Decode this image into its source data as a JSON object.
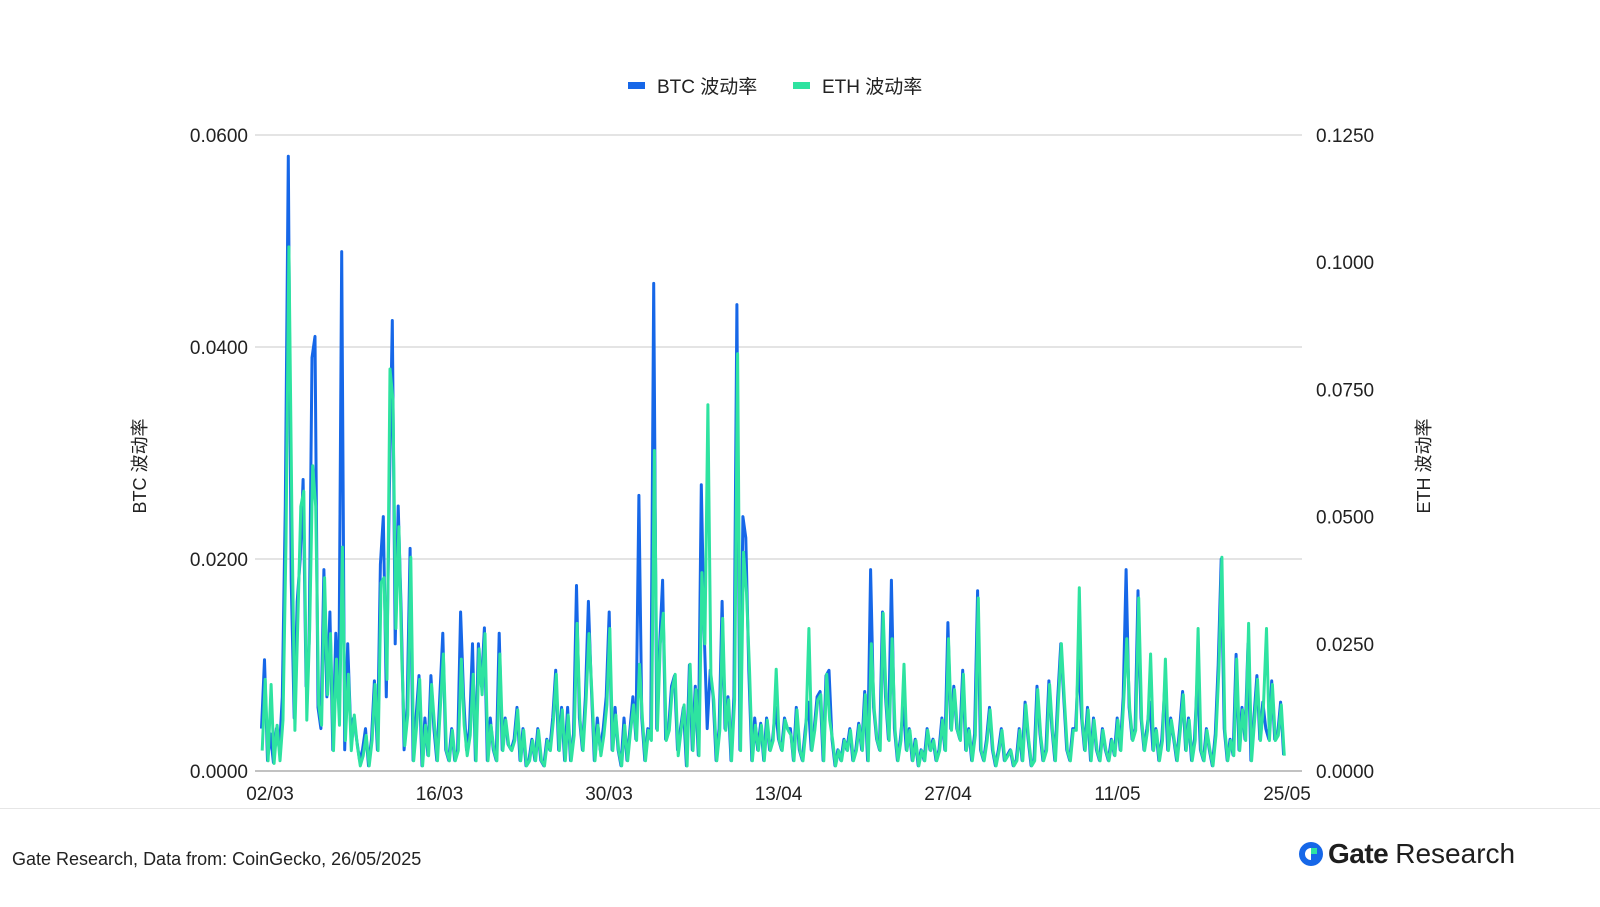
{
  "chart_data": {
    "type": "line",
    "legend_position": "top-center",
    "grid": true,
    "x_tick_labels": [
      "02/03",
      "16/03",
      "30/03",
      "13/04",
      "27/04",
      "11/05",
      "25/05"
    ],
    "y_left": {
      "label": "BTC 波动率",
      "ylim": [
        0,
        0.06
      ],
      "ticks": [
        "0.0000",
        "0.0200",
        "0.0400",
        "0.0600"
      ]
    },
    "y_right": {
      "label": "ETH 波动率",
      "ylim": [
        0,
        0.125
      ],
      "ticks": [
        "0.0000",
        "0.0250",
        "0.0500",
        "0.0750",
        "0.1000",
        "0.1250"
      ]
    },
    "series": [
      {
        "name": "BTC 波动率",
        "axis": "left",
        "color": "#1667e8",
        "x_start": 0,
        "x_step": 0.5,
        "values": [
          0.004,
          0.0105,
          0.001,
          0.0035,
          0.0008,
          0.004,
          0.002,
          0.007,
          0.025,
          0.058,
          0.018,
          0.005,
          0.016,
          0.02,
          0.0275,
          0.008,
          0.012,
          0.039,
          0.041,
          0.006,
          0.004,
          0.019,
          0.007,
          0.015,
          0.002,
          0.013,
          0.007,
          0.049,
          0.002,
          0.012,
          0.004,
          0.005,
          0.003,
          0.001,
          0.002,
          0.004,
          0.0005,
          0.003,
          0.0085,
          0.002,
          0.0195,
          0.024,
          0.007,
          0.026,
          0.0425,
          0.012,
          0.025,
          0.015,
          0.002,
          0.006,
          0.021,
          0.001,
          0.005,
          0.009,
          0.0005,
          0.005,
          0.0015,
          0.009,
          0.004,
          0.001,
          0.007,
          0.013,
          0.002,
          0.001,
          0.004,
          0.001,
          0.002,
          0.015,
          0.007,
          0.002,
          0.004,
          0.012,
          0.001,
          0.012,
          0.008,
          0.0135,
          0.001,
          0.005,
          0.002,
          0.001,
          0.013,
          0.002,
          0.005,
          0.0025,
          0.002,
          0.003,
          0.006,
          0.001,
          0.004,
          0.0005,
          0.001,
          0.003,
          0.001,
          0.004,
          0.001,
          0.0005,
          0.003,
          0.002,
          0.005,
          0.0095,
          0.002,
          0.006,
          0.001,
          0.006,
          0.001,
          0.0035,
          0.0175,
          0.005,
          0.002,
          0.007,
          0.016,
          0.008,
          0.001,
          0.005,
          0.002,
          0.004,
          0.007,
          0.015,
          0.002,
          0.006,
          0.002,
          0.0005,
          0.005,
          0.001,
          0.004,
          0.007,
          0.003,
          0.026,
          0.005,
          0.001,
          0.004,
          0.003,
          0.046,
          0.004,
          0.012,
          0.018,
          0.003,
          0.004,
          0.008,
          0.009,
          0.002,
          0.004,
          0.006,
          0.0005,
          0.01,
          0.002,
          0.008,
          0.0015,
          0.027,
          0.013,
          0.004,
          0.0095,
          0.007,
          0.001,
          0.004,
          0.016,
          0.004,
          0.007,
          0.001,
          0.007,
          0.044,
          0.002,
          0.024,
          0.022,
          0.0095,
          0.001,
          0.005,
          0.002,
          0.0045,
          0.001,
          0.005,
          0.002,
          0.003,
          0.006,
          0.003,
          0.002,
          0.005,
          0.004,
          0.004,
          0.001,
          0.006,
          0.002,
          0.001,
          0.004,
          0.0065,
          0.002,
          0.004,
          0.007,
          0.0075,
          0.001,
          0.009,
          0.0095,
          0.003,
          0.0005,
          0.002,
          0.001,
          0.003,
          0.002,
          0.004,
          0.001,
          0.002,
          0.0045,
          0.002,
          0.0075,
          0.001,
          0.019,
          0.006,
          0.003,
          0.002,
          0.015,
          0.007,
          0.003,
          0.018,
          0.004,
          0.001,
          0.003,
          0.006,
          0.002,
          0.004,
          0.001,
          0.003,
          0.0005,
          0.002,
          0.001,
          0.004,
          0.002,
          0.003,
          0.001,
          0.002,
          0.005,
          0.002,
          0.014,
          0.004,
          0.008,
          0.004,
          0.003,
          0.0095,
          0.002,
          0.004,
          0.001,
          0.0035,
          0.017,
          0.002,
          0.001,
          0.003,
          0.006,
          0.002,
          0.0005,
          0.002,
          0.004,
          0.001,
          0.0015,
          0.002,
          0.0005,
          0.001,
          0.004,
          0.001,
          0.0065,
          0.003,
          0.0005,
          0.001,
          0.008,
          0.0035,
          0.001,
          0.002,
          0.0085,
          0.004,
          0.001,
          0.007,
          0.012,
          0.007,
          0.002,
          0.001,
          0.004,
          0.004,
          0.0105,
          0.005,
          0.002,
          0.006,
          0.001,
          0.005,
          0.002,
          0.001,
          0.004,
          0.002,
          0.001,
          0.003,
          0.0015,
          0.005,
          0.002,
          0.007,
          0.019,
          0.006,
          0.003,
          0.004,
          0.017,
          0.005,
          0.002,
          0.004,
          0.0065,
          0.002,
          0.004,
          0.001,
          0.003,
          0.008,
          0.002,
          0.005,
          0.003,
          0.001,
          0.004,
          0.0075,
          0.002,
          0.005,
          0.001,
          0.003,
          0.009,
          0.002,
          0.001,
          0.004,
          0.002,
          0.0005,
          0.0035,
          0.01,
          0.02,
          0.004,
          0.001,
          0.003,
          0.0015,
          0.011,
          0.002,
          0.006,
          0.003,
          0.012,
          0.001,
          0.005,
          0.009,
          0.003,
          0.0065,
          0.004,
          0.003,
          0.0085,
          0.003,
          0.0035,
          0.0065,
          0.0015
        ]
      },
      {
        "name": "ETH 波动率",
        "axis": "right",
        "color": "#2ee3a0",
        "x_start": 0.25,
        "x_step": 0.5,
        "values": [
          0.004,
          0.018,
          0.002,
          0.017,
          0.0015,
          0.009,
          0.002,
          0.01,
          0.045,
          0.103,
          0.05,
          0.008,
          0.03,
          0.052,
          0.055,
          0.01,
          0.028,
          0.06,
          0.052,
          0.013,
          0.009,
          0.038,
          0.015,
          0.027,
          0.004,
          0.022,
          0.009,
          0.044,
          0.006,
          0.019,
          0.004,
          0.011,
          0.005,
          0.001,
          0.003,
          0.007,
          0.001,
          0.006,
          0.017,
          0.004,
          0.037,
          0.038,
          0.018,
          0.079,
          0.073,
          0.028,
          0.048,
          0.022,
          0.005,
          0.011,
          0.042,
          0.002,
          0.009,
          0.018,
          0.001,
          0.009,
          0.003,
          0.017,
          0.009,
          0.002,
          0.013,
          0.023,
          0.004,
          0.002,
          0.008,
          0.002,
          0.004,
          0.022,
          0.009,
          0.003,
          0.007,
          0.019,
          0.002,
          0.024,
          0.015,
          0.027,
          0.002,
          0.009,
          0.004,
          0.002,
          0.023,
          0.004,
          0.01,
          0.005,
          0.004,
          0.006,
          0.012,
          0.002,
          0.008,
          0.001,
          0.002,
          0.006,
          0.002,
          0.008,
          0.002,
          0.001,
          0.006,
          0.004,
          0.01,
          0.019,
          0.004,
          0.012,
          0.002,
          0.011,
          0.002,
          0.007,
          0.029,
          0.01,
          0.004,
          0.014,
          0.027,
          0.015,
          0.002,
          0.009,
          0.003,
          0.007,
          0.013,
          0.028,
          0.004,
          0.011,
          0.004,
          0.001,
          0.009,
          0.002,
          0.008,
          0.013,
          0.006,
          0.021,
          0.01,
          0.002,
          0.008,
          0.006,
          0.063,
          0.008,
          0.025,
          0.031,
          0.006,
          0.008,
          0.016,
          0.019,
          0.003,
          0.008,
          0.013,
          0.001,
          0.021,
          0.004,
          0.016,
          0.003,
          0.039,
          0.025,
          0.072,
          0.019,
          0.014,
          0.002,
          0.008,
          0.03,
          0.008,
          0.014,
          0.002,
          0.014,
          0.082,
          0.004,
          0.043,
          0.035,
          0.02,
          0.002,
          0.009,
          0.004,
          0.009,
          0.002,
          0.01,
          0.004,
          0.006,
          0.02,
          0.006,
          0.004,
          0.01,
          0.008,
          0.007,
          0.002,
          0.012,
          0.004,
          0.002,
          0.008,
          0.028,
          0.004,
          0.008,
          0.014,
          0.015,
          0.002,
          0.019,
          0.01,
          0.006,
          0.001,
          0.004,
          0.002,
          0.006,
          0.004,
          0.008,
          0.002,
          0.004,
          0.009,
          0.004,
          0.015,
          0.002,
          0.025,
          0.012,
          0.006,
          0.004,
          0.031,
          0.014,
          0.006,
          0.026,
          0.008,
          0.002,
          0.006,
          0.021,
          0.004,
          0.008,
          0.002,
          0.006,
          0.001,
          0.004,
          0.002,
          0.008,
          0.004,
          0.006,
          0.002,
          0.004,
          0.01,
          0.004,
          0.026,
          0.008,
          0.016,
          0.008,
          0.006,
          0.019,
          0.004,
          0.008,
          0.002,
          0.007,
          0.034,
          0.004,
          0.002,
          0.006,
          0.012,
          0.004,
          0.001,
          0.004,
          0.008,
          0.002,
          0.003,
          0.004,
          0.001,
          0.002,
          0.008,
          0.002,
          0.013,
          0.006,
          0.001,
          0.002,
          0.016,
          0.007,
          0.002,
          0.004,
          0.017,
          0.008,
          0.002,
          0.014,
          0.025,
          0.014,
          0.004,
          0.002,
          0.008,
          0.008,
          0.036,
          0.01,
          0.004,
          0.012,
          0.002,
          0.01,
          0.004,
          0.002,
          0.008,
          0.004,
          0.002,
          0.006,
          0.003,
          0.01,
          0.004,
          0.014,
          0.026,
          0.012,
          0.006,
          0.008,
          0.034,
          0.01,
          0.004,
          0.008,
          0.023,
          0.004,
          0.008,
          0.002,
          0.006,
          0.022,
          0.004,
          0.01,
          0.006,
          0.002,
          0.008,
          0.015,
          0.004,
          0.01,
          0.002,
          0.006,
          0.028,
          0.004,
          0.002,
          0.008,
          0.004,
          0.001,
          0.007,
          0.02,
          0.042,
          0.008,
          0.002,
          0.006,
          0.003,
          0.022,
          0.004,
          0.012,
          0.006,
          0.029,
          0.002,
          0.01,
          0.018,
          0.006,
          0.013,
          0.028,
          0.006,
          0.017,
          0.006,
          0.007,
          0.013,
          0.003
        ]
      }
    ]
  },
  "footer": {
    "source": "Gate Research, Data from: CoinGecko, 26/05/2025",
    "brand_name": "Gate",
    "brand_sub": "Research",
    "brand_color": "#1667e8"
  }
}
